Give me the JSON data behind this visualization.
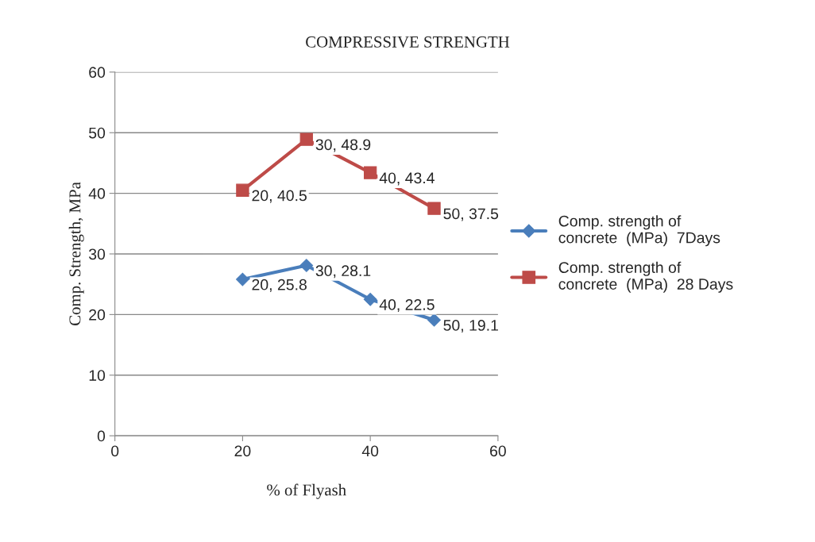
{
  "chart_data": {
    "type": "line",
    "title": "COMPRESSIVE STRENGTH",
    "xlabel": "% of Flyash",
    "ylabel": "Comp. Strength, MPa",
    "xlim": [
      0,
      60
    ],
    "xticks": [
      0,
      20,
      40,
      60
    ],
    "ylim": [
      0,
      60
    ],
    "yticks": [
      0,
      10,
      20,
      30,
      40,
      50,
      60
    ],
    "grid": "y",
    "legend": "right",
    "series": [
      {
        "name": "Comp. strength of concrete  (MPa)  7Days",
        "color": "#4a7ebb",
        "marker": "diamond",
        "x": [
          20,
          30,
          40,
          50
        ],
        "values": [
          25.8,
          28.1,
          22.5,
          19.1
        ],
        "value_labels": [
          "20, 25.8",
          "30, 28.1",
          "40, 22.5",
          "50, 19.1"
        ]
      },
      {
        "name": "Comp. strength of concrete  (MPa)  28 Days",
        "color": "#be4b48",
        "marker": "square",
        "x": [
          20,
          30,
          40,
          50
        ],
        "values": [
          40.5,
          48.9,
          43.4,
          37.5
        ],
        "value_labels": [
          "20, 40.5",
          "30, 48.9",
          "40, 43.4",
          "50, 37.5"
        ]
      }
    ]
  }
}
